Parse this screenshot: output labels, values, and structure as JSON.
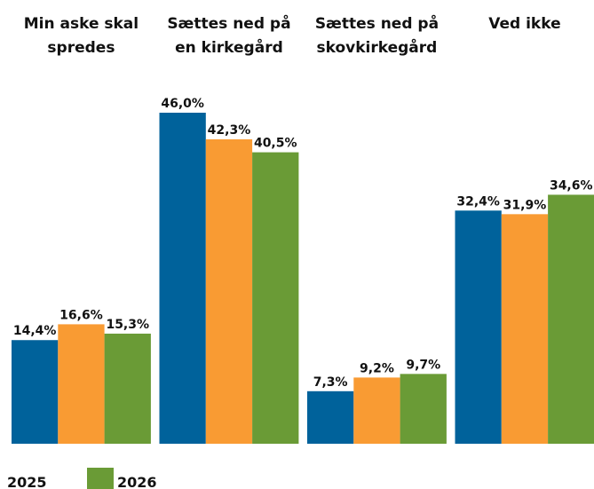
{
  "chart_data": {
    "type": "bar",
    "categories": [
      "Min aske skal spredes",
      "Sættes ned på en kirkegård",
      "Sættes ned på skovkirkegård",
      "Ved ikke"
    ],
    "series": [
      {
        "color": "#00629b",
        "values": [
          14.4,
          46.0,
          7.3,
          32.4
        ],
        "value_labels": [
          "14,4%",
          "46,0%",
          "7,3%",
          "32,4%"
        ]
      },
      {
        "name": "2025",
        "color": "#f99b33",
        "values": [
          16.6,
          42.3,
          9.2,
          31.9
        ],
        "value_labels": [
          "16,6%",
          "42,3%",
          "9,2%",
          "31,9%"
        ]
      },
      {
        "name": "2026",
        "color": "#6a9b36",
        "values": [
          15.3,
          40.5,
          9.7,
          34.6
        ],
        "value_labels": [
          "15,3%",
          "40,5%",
          "9,7%",
          "34,6%"
        ]
      }
    ]
  }
}
